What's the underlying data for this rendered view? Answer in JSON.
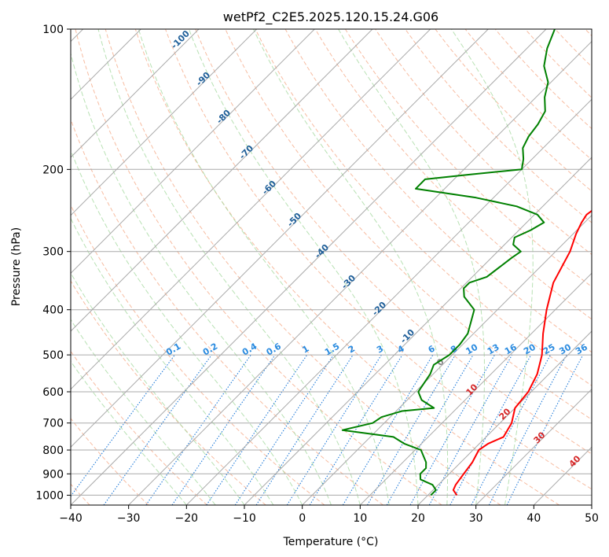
{
  "chart_data": {
    "type": "line",
    "title": "wetPf2_C2E5.2025.120.15.24.G06",
    "xlabel": "Temperature (°C)",
    "ylabel": "Pressure (hPa)",
    "xlim": [
      -40,
      50
    ],
    "ylim": [
      1050,
      100
    ],
    "y_scale": "log",
    "grid": true,
    "x_ticks": [
      "−40",
      "−30",
      "−20",
      "−10",
      "0",
      "10",
      "20",
      "30",
      "40",
      "50"
    ],
    "x_tick_values": [
      -40,
      -30,
      -20,
      -10,
      0,
      10,
      20,
      30,
      40,
      50
    ],
    "y_ticks": [
      "100",
      "200",
      "300",
      "400",
      "500",
      "600",
      "700",
      "800",
      "900",
      "1000"
    ],
    "y_tick_values": [
      100,
      200,
      300,
      400,
      500,
      600,
      700,
      800,
      900,
      1000
    ],
    "series": [
      {
        "role": "temperature",
        "color": "#ff0000",
        "points": [
          [
            1000,
            25.0
          ],
          [
            975,
            23.5
          ],
          [
            950,
            23.0
          ],
          [
            900,
            22.5
          ],
          [
            850,
            22.0
          ],
          [
            800,
            21.0
          ],
          [
            775,
            21.5
          ],
          [
            750,
            23.0
          ],
          [
            700,
            22.0
          ],
          [
            650,
            20.0
          ],
          [
            600,
            19.5
          ],
          [
            550,
            18.0
          ],
          [
            500,
            15.5
          ],
          [
            450,
            12.0
          ],
          [
            400,
            8.5
          ],
          [
            350,
            5.0
          ],
          [
            300,
            2.5
          ],
          [
            275,
            0.5
          ],
          [
            260,
            -0.5
          ],
          [
            250,
            -1.0
          ],
          [
            240,
            -0.5
          ],
          [
            225,
            1.0
          ],
          [
            210,
            2.5
          ],
          [
            200,
            3.0
          ],
          [
            180,
            4.0
          ],
          [
            160,
            5.0
          ],
          [
            150,
            4.5
          ],
          [
            130,
            4.5
          ],
          [
            110,
            5.5
          ],
          [
            100,
            6.5
          ]
        ]
      },
      {
        "role": "dewpoint",
        "color": "#008000",
        "points": [
          [
            1000,
            20.5
          ],
          [
            975,
            20.5
          ],
          [
            950,
            19.0
          ],
          [
            925,
            16.0
          ],
          [
            900,
            15.0
          ],
          [
            875,
            15.0
          ],
          [
            850,
            14.0
          ],
          [
            800,
            11.0
          ],
          [
            775,
            7.0
          ],
          [
            750,
            4.0
          ],
          [
            725,
            -6.0
          ],
          [
            700,
            -2.0
          ],
          [
            680,
            -1.5
          ],
          [
            660,
            1.0
          ],
          [
            650,
            6.0
          ],
          [
            625,
            2.5
          ],
          [
            600,
            0.5
          ],
          [
            575,
            0.0
          ],
          [
            550,
            -0.5
          ],
          [
            525,
            -1.5
          ],
          [
            500,
            -0.5
          ],
          [
            475,
            -0.5
          ],
          [
            450,
            -1.0
          ],
          [
            400,
            -4.0
          ],
          [
            375,
            -8.0
          ],
          [
            360,
            -9.5
          ],
          [
            350,
            -9.5
          ],
          [
            340,
            -7.5
          ],
          [
            310,
            -6.5
          ],
          [
            300,
            -6.0
          ],
          [
            290,
            -8.5
          ],
          [
            280,
            -9.5
          ],
          [
            270,
            -8.0
          ],
          [
            260,
            -7.0
          ],
          [
            250,
            -9.5
          ],
          [
            240,
            -14.5
          ],
          [
            230,
            -23.0
          ],
          [
            220,
            -35.0
          ],
          [
            210,
            -35.0
          ],
          [
            205,
            -28.0
          ],
          [
            200,
            -20.0
          ],
          [
            190,
            -21.5
          ],
          [
            180,
            -23.5
          ],
          [
            170,
            -24.5
          ],
          [
            160,
            -25.0
          ],
          [
            150,
            -26.0
          ],
          [
            140,
            -28.5
          ],
          [
            130,
            -30.5
          ],
          [
            120,
            -34.0
          ],
          [
            110,
            -36.5
          ],
          [
            100,
            -38.5
          ]
        ]
      }
    ],
    "dry_adiabat_labels": [
      "-100",
      "-90",
      "-80",
      "-70",
      "-60",
      "-50",
      "-40",
      "-30",
      "-20",
      "-10",
      "0",
      "10",
      "20",
      "30",
      "40"
    ],
    "dry_adiabat_label_values": [
      -100,
      -90,
      -80,
      -70,
      -60,
      -50,
      -40,
      -30,
      -20,
      -10,
      0,
      10,
      20,
      30,
      40
    ],
    "mixing_ratio_labels": [
      "0.1",
      "0.2",
      "0.4",
      "0.6",
      "1",
      "1.5",
      "2",
      "3",
      "4",
      "6",
      "8",
      "10",
      "13",
      "16",
      "20",
      "25",
      "30",
      "36"
    ],
    "mixing_ratio_values": [
      0.1,
      0.2,
      0.4,
      0.6,
      1,
      1.5,
      2,
      3,
      4,
      6,
      8,
      10,
      13,
      16,
      20,
      25,
      30,
      36
    ],
    "colors": {
      "temperature": "#ff0000",
      "dewpoint": "#008000",
      "isotherm": "#aaaaaa",
      "isobar": "#aaaaaa",
      "dry_adiabat": "#f4a582",
      "moist_adiabat": "#a6d9a0",
      "mixing_ratio": "#1f7ad8",
      "label_dark_blue": "#1f5f99",
      "label_light_blue": "#2a8be0",
      "label_red": "#d62728",
      "label_gray": "#888888"
    }
  }
}
